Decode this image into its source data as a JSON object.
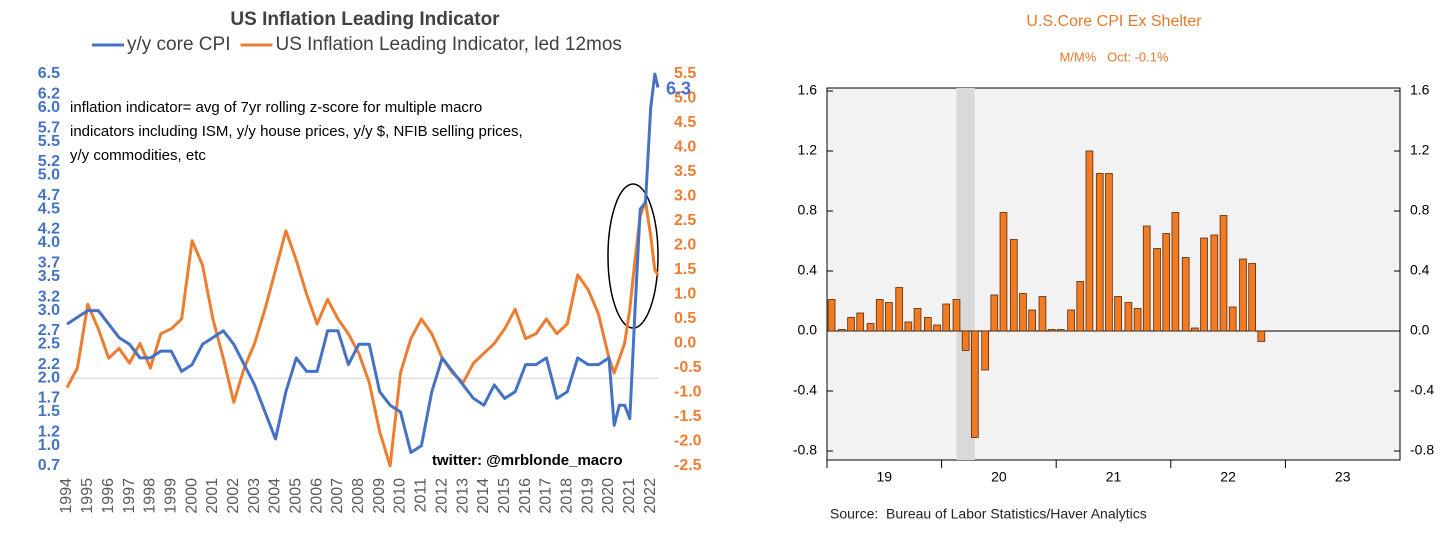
{
  "chart_data": [
    {
      "type": "line",
      "title": "US Inflation Leading Indicator",
      "x": [
        1994,
        1994.5,
        1995,
        1995.5,
        1996,
        1996.5,
        1997,
        1997.5,
        1998,
        1998.5,
        1999,
        1999.5,
        2000,
        2000.5,
        2001,
        2001.5,
        2002,
        2002.5,
        2003,
        2003.5,
        2004,
        2004.5,
        2005,
        2005.5,
        2006,
        2006.5,
        2007,
        2007.5,
        2008,
        2008.5,
        2009,
        2009.5,
        2010,
        2010.5,
        2011,
        2011.5,
        2012,
        2012.5,
        2013,
        2013.5,
        2014,
        2014.5,
        2015,
        2015.5,
        2016,
        2016.5,
        2017,
        2017.5,
        2018,
        2018.5,
        2019,
        2019.5,
        2020,
        2020.25,
        2020.5,
        2020.75,
        2021,
        2021.25,
        2021.5,
        2021.75,
        2022,
        2022.2,
        2022.35
      ],
      "series": [
        {
          "name": "y/y core CPI",
          "color": "#4472c4",
          "axis": "y",
          "end_label": "6.3",
          "values": [
            2.8,
            2.9,
            3.0,
            3.0,
            2.8,
            2.6,
            2.5,
            2.3,
            2.3,
            2.4,
            2.4,
            2.1,
            2.2,
            2.5,
            2.6,
            2.7,
            2.5,
            2.2,
            1.9,
            1.5,
            1.1,
            1.8,
            2.3,
            2.1,
            2.1,
            2.7,
            2.7,
            2.2,
            2.5,
            2.5,
            1.8,
            1.6,
            1.5,
            0.9,
            1.0,
            1.8,
            2.3,
            2.1,
            1.9,
            1.7,
            1.6,
            1.9,
            1.7,
            1.8,
            2.2,
            2.2,
            2.3,
            1.7,
            1.8,
            2.3,
            2.2,
            2.2,
            2.3,
            1.3,
            1.6,
            1.6,
            1.4,
            3.0,
            4.5,
            4.6,
            6.0,
            6.5,
            6.3
          ]
        },
        {
          "name": "US Inflation Leading Indicator, led 12mos",
          "color": "#ed7d31",
          "axis": "y2",
          "values": [
            -0.9,
            -0.5,
            0.8,
            0.3,
            -0.3,
            -0.1,
            -0.4,
            0.0,
            -0.5,
            0.2,
            0.3,
            0.5,
            2.1,
            1.6,
            0.5,
            -0.3,
            -1.2,
            -0.5,
            0.0,
            0.7,
            1.5,
            2.3,
            1.7,
            1.0,
            0.4,
            0.9,
            0.5,
            0.2,
            -0.2,
            -0.8,
            -1.8,
            -2.5,
            -0.6,
            0.1,
            0.5,
            0.2,
            -0.3,
            -0.6,
            -0.8,
            -0.4,
            -0.2,
            0.0,
            0.3,
            0.7,
            0.1,
            0.2,
            0.5,
            0.2,
            0.4,
            1.4,
            1.1,
            0.6,
            -0.3,
            -0.6,
            -0.3,
            0.0,
            0.7,
            1.7,
            2.6,
            2.9,
            2.2,
            1.5,
            1.4
          ]
        }
      ],
      "xlim": [
        1994,
        2022.4
      ],
      "xticks": [
        1994,
        1995,
        1996,
        1997,
        1998,
        1999,
        2000,
        2001,
        2002,
        2003,
        2004,
        2005,
        2006,
        2007,
        2008,
        2009,
        2010,
        2011,
        2012,
        2013,
        2014,
        2015,
        2016,
        2017,
        2018,
        2019,
        2020,
        2021,
        2022
      ],
      "ylim": [
        0.7,
        6.5
      ],
      "yticks": [
        0.7,
        {
          "value": 1,
          "label": "1.0"
        },
        1.2,
        1.5,
        1.7,
        {
          "value": 2,
          "label": "2.0"
        },
        2.2,
        2.5,
        2.7,
        {
          "value": 3,
          "label": "3.0"
        },
        3.2,
        3.5,
        3.7,
        {
          "value": 4,
          "label": "4.0"
        },
        4.2,
        4.5,
        4.7,
        {
          "value": 5,
          "label": "5.0"
        },
        5.2,
        5.5,
        5.7,
        {
          "value": 6,
          "label": "6.0"
        },
        6.2,
        6.5
      ],
      "y2lim": [
        -2.5,
        5.5
      ],
      "y2ticks": [
        -2.5,
        {
          "value": -2,
          "label": "-2.0"
        },
        -1.5,
        {
          "value": -1,
          "label": "-1.0"
        },
        -0.5,
        {
          "value": 0,
          "label": "0.0"
        },
        0.5,
        {
          "value": 1,
          "label": "1.0"
        },
        1.5,
        {
          "value": 2,
          "label": "2.0"
        },
        2.5,
        {
          "value": 3,
          "label": "3.0"
        },
        3.5,
        {
          "value": 4,
          "label": "4.0"
        },
        4.5,
        {
          "value": 5,
          "label": "5.0"
        },
        5.5
      ],
      "reference_line": 2,
      "note": [
        "inflation indicator= avg of 7yr rolling z-score for multiple macro",
        "indicators including ISM, y/y house prices, y/y $, NFIB selling prices,",
        "y/y commodities, etc"
      ],
      "credit": "twitter: @mrblonde_macro"
    },
    {
      "type": "bar",
      "title": "U.S.Core CPI Ex Shelter",
      "subtitle": "M/M%   Oct: -0.1%",
      "source": "Source:  Bureau of Labor Statistics/Haver Analytics",
      "color": "#f07b22",
      "x": [
        2019.04,
        2019.13,
        2019.21,
        2019.29,
        2019.38,
        2019.46,
        2019.54,
        2019.63,
        2019.71,
        2019.79,
        2019.88,
        2019.96,
        2020.04,
        2020.13,
        2020.21,
        2020.29,
        2020.38,
        2020.46,
        2020.54,
        2020.63,
        2020.71,
        2020.79,
        2020.88,
        2020.96,
        2021.04,
        2021.13,
        2021.21,
        2021.29,
        2021.38,
        2021.46,
        2021.54,
        2021.63,
        2021.71,
        2021.79,
        2021.88,
        2021.96,
        2022.04,
        2022.13,
        2022.21,
        2022.29,
        2022.38,
        2022.46,
        2022.54,
        2022.63,
        2022.71,
        2022.79
      ],
      "values": [
        0.21,
        0.01,
        0.09,
        0.12,
        0.05,
        0.21,
        0.19,
        0.29,
        0.06,
        0.15,
        0.09,
        0.04,
        0.18,
        0.21,
        -0.13,
        -0.71,
        -0.26,
        0.24,
        0.79,
        0.61,
        0.25,
        0.14,
        0.23,
        0.01,
        0.01,
        0.14,
        0.33,
        1.2,
        1.05,
        1.05,
        0.23,
        0.19,
        0.15,
        0.7,
        0.55,
        0.65,
        0.79,
        0.49,
        0.02,
        0.62,
        0.64,
        0.77,
        0.16,
        0.48,
        0.45,
        -0.07
      ],
      "xlim": [
        2019,
        2024
      ],
      "xticks": [
        {
          "value": 2019,
          "label": "19"
        },
        {
          "value": 2020,
          "label": "20"
        },
        {
          "value": 2021,
          "label": "21"
        },
        {
          "value": 2022,
          "label": "22"
        },
        {
          "value": 2023,
          "label": "23"
        }
      ],
      "ylim": [
        -0.86,
        1.6
      ],
      "yticks": [
        -0.8,
        -0.4,
        {
          "value": 0,
          "label": "0.0"
        },
        0.4,
        0.8,
        1.2,
        1.6
      ],
      "recession_band": [
        2020.13,
        2020.29
      ]
    }
  ]
}
